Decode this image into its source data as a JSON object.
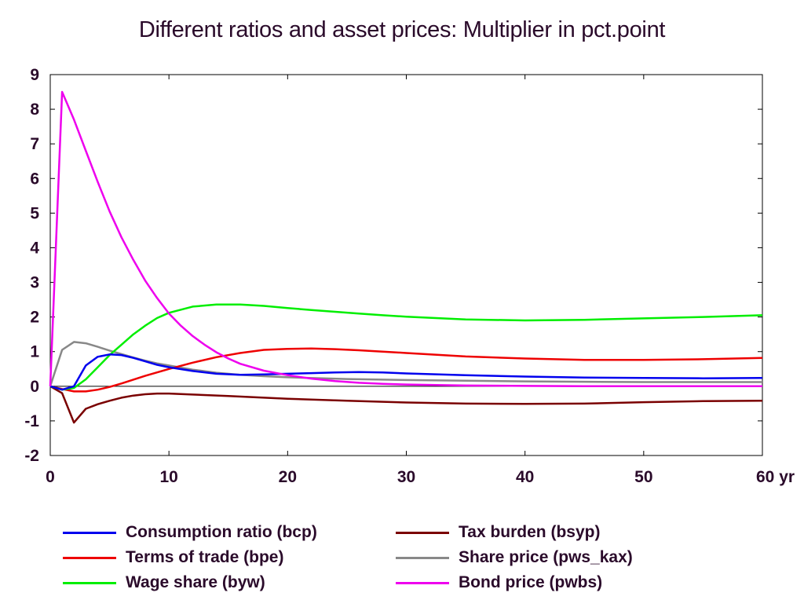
{
  "chart_data": {
    "type": "line",
    "title": "Different ratios and asset prices: Multiplier in pct.point",
    "xlim": [
      0,
      60
    ],
    "ylim": [
      -2,
      9
    ],
    "x_ticks": [
      "0",
      "10",
      "20",
      "30",
      "40",
      "50",
      "60 yr"
    ],
    "y_ticks": [
      "9",
      "8",
      "7",
      "6",
      "5",
      "4",
      "3",
      "2",
      "1",
      "0",
      "-1",
      "-2"
    ],
    "legend_position": "bottom",
    "series": [
      {
        "name": "Consumption ratio (bcp)",
        "color": "#0000ee",
        "points": [
          [
            0,
            0
          ],
          [
            1,
            -0.1
          ],
          [
            2,
            0
          ],
          [
            3,
            0.6
          ],
          [
            4,
            0.85
          ],
          [
            5,
            0.92
          ],
          [
            6,
            0.9
          ],
          [
            7,
            0.82
          ],
          [
            8,
            0.72
          ],
          [
            9,
            0.62
          ],
          [
            10,
            0.55
          ],
          [
            12,
            0.44
          ],
          [
            14,
            0.36
          ],
          [
            16,
            0.33
          ],
          [
            18,
            0.34
          ],
          [
            20,
            0.36
          ],
          [
            22,
            0.38
          ],
          [
            24,
            0.4
          ],
          [
            26,
            0.41
          ],
          [
            28,
            0.4
          ],
          [
            30,
            0.37
          ],
          [
            35,
            0.32
          ],
          [
            40,
            0.28
          ],
          [
            45,
            0.25
          ],
          [
            50,
            0.24
          ],
          [
            55,
            0.23
          ],
          [
            60,
            0.24
          ]
        ]
      },
      {
        "name": "Terms of trade (bpe)",
        "color": "#ee0000",
        "points": [
          [
            0,
            0
          ],
          [
            1,
            -0.08
          ],
          [
            2,
            -0.15
          ],
          [
            3,
            -0.15
          ],
          [
            4,
            -0.1
          ],
          [
            5,
            -0.02
          ],
          [
            6,
            0.08
          ],
          [
            8,
            0.3
          ],
          [
            10,
            0.5
          ],
          [
            12,
            0.68
          ],
          [
            14,
            0.84
          ],
          [
            16,
            0.96
          ],
          [
            18,
            1.05
          ],
          [
            20,
            1.08
          ],
          [
            22,
            1.09
          ],
          [
            24,
            1.07
          ],
          [
            26,
            1.04
          ],
          [
            28,
            1.0
          ],
          [
            30,
            0.96
          ],
          [
            35,
            0.86
          ],
          [
            40,
            0.8
          ],
          [
            45,
            0.76
          ],
          [
            50,
            0.76
          ],
          [
            55,
            0.78
          ],
          [
            60,
            0.82
          ]
        ]
      },
      {
        "name": "Wage share (byw)",
        "color": "#00ee00",
        "points": [
          [
            0,
            0
          ],
          [
            1,
            -0.1
          ],
          [
            2,
            -0.05
          ],
          [
            3,
            0.2
          ],
          [
            4,
            0.55
          ],
          [
            5,
            0.9
          ],
          [
            6,
            1.2
          ],
          [
            7,
            1.5
          ],
          [
            8,
            1.75
          ],
          [
            9,
            1.97
          ],
          [
            10,
            2.12
          ],
          [
            12,
            2.3
          ],
          [
            14,
            2.36
          ],
          [
            16,
            2.36
          ],
          [
            18,
            2.32
          ],
          [
            20,
            2.26
          ],
          [
            22,
            2.2
          ],
          [
            24,
            2.15
          ],
          [
            26,
            2.1
          ],
          [
            28,
            2.05
          ],
          [
            30,
            2.01
          ],
          [
            35,
            1.93
          ],
          [
            40,
            1.9
          ],
          [
            45,
            1.92
          ],
          [
            50,
            1.96
          ],
          [
            55,
            2.0
          ],
          [
            60,
            2.05
          ]
        ]
      },
      {
        "name": "Tax burden (bsyp)",
        "color": "#7a0000",
        "points": [
          [
            0,
            0
          ],
          [
            1,
            -0.2
          ],
          [
            2,
            -1.05
          ],
          [
            3,
            -0.65
          ],
          [
            4,
            -0.52
          ],
          [
            5,
            -0.42
          ],
          [
            6,
            -0.33
          ],
          [
            7,
            -0.27
          ],
          [
            8,
            -0.23
          ],
          [
            9,
            -0.21
          ],
          [
            10,
            -0.21
          ],
          [
            12,
            -0.24
          ],
          [
            15,
            -0.28
          ],
          [
            20,
            -0.36
          ],
          [
            25,
            -0.42
          ],
          [
            30,
            -0.47
          ],
          [
            35,
            -0.5
          ],
          [
            40,
            -0.51
          ],
          [
            45,
            -0.5
          ],
          [
            50,
            -0.46
          ],
          [
            55,
            -0.43
          ],
          [
            60,
            -0.42
          ]
        ]
      },
      {
        "name": "Share price (pws_kax)",
        "color": "#888888",
        "points": [
          [
            0,
            0
          ],
          [
            1,
            1.05
          ],
          [
            2,
            1.28
          ],
          [
            3,
            1.24
          ],
          [
            4,
            1.14
          ],
          [
            5,
            1.03
          ],
          [
            6,
            0.93
          ],
          [
            7,
            0.83
          ],
          [
            8,
            0.74
          ],
          [
            9,
            0.66
          ],
          [
            10,
            0.6
          ],
          [
            12,
            0.48
          ],
          [
            14,
            0.39
          ],
          [
            16,
            0.33
          ],
          [
            18,
            0.29
          ],
          [
            20,
            0.26
          ],
          [
            25,
            0.21
          ],
          [
            30,
            0.18
          ],
          [
            35,
            0.16
          ],
          [
            40,
            0.14
          ],
          [
            45,
            0.13
          ],
          [
            50,
            0.12
          ],
          [
            55,
            0.12
          ],
          [
            60,
            0.12
          ]
        ]
      },
      {
        "name": "Bond price (pwbs)",
        "color": "#ee00ee",
        "points": [
          [
            0,
            0
          ],
          [
            1,
            8.5
          ],
          [
            2,
            7.7
          ],
          [
            3,
            6.8
          ],
          [
            4,
            5.9
          ],
          [
            5,
            5.05
          ],
          [
            6,
            4.3
          ],
          [
            7,
            3.65
          ],
          [
            8,
            3.05
          ],
          [
            9,
            2.55
          ],
          [
            10,
            2.1
          ],
          [
            11,
            1.75
          ],
          [
            12,
            1.45
          ],
          [
            13,
            1.2
          ],
          [
            14,
            0.98
          ],
          [
            15,
            0.8
          ],
          [
            16,
            0.65
          ],
          [
            18,
            0.45
          ],
          [
            20,
            0.32
          ],
          [
            22,
            0.22
          ],
          [
            24,
            0.15
          ],
          [
            26,
            0.1
          ],
          [
            28,
            0.07
          ],
          [
            30,
            0.05
          ],
          [
            35,
            0.02
          ],
          [
            40,
            0.01
          ],
          [
            45,
            0
          ],
          [
            50,
            0
          ],
          [
            55,
            0
          ],
          [
            60,
            0
          ]
        ]
      }
    ]
  }
}
